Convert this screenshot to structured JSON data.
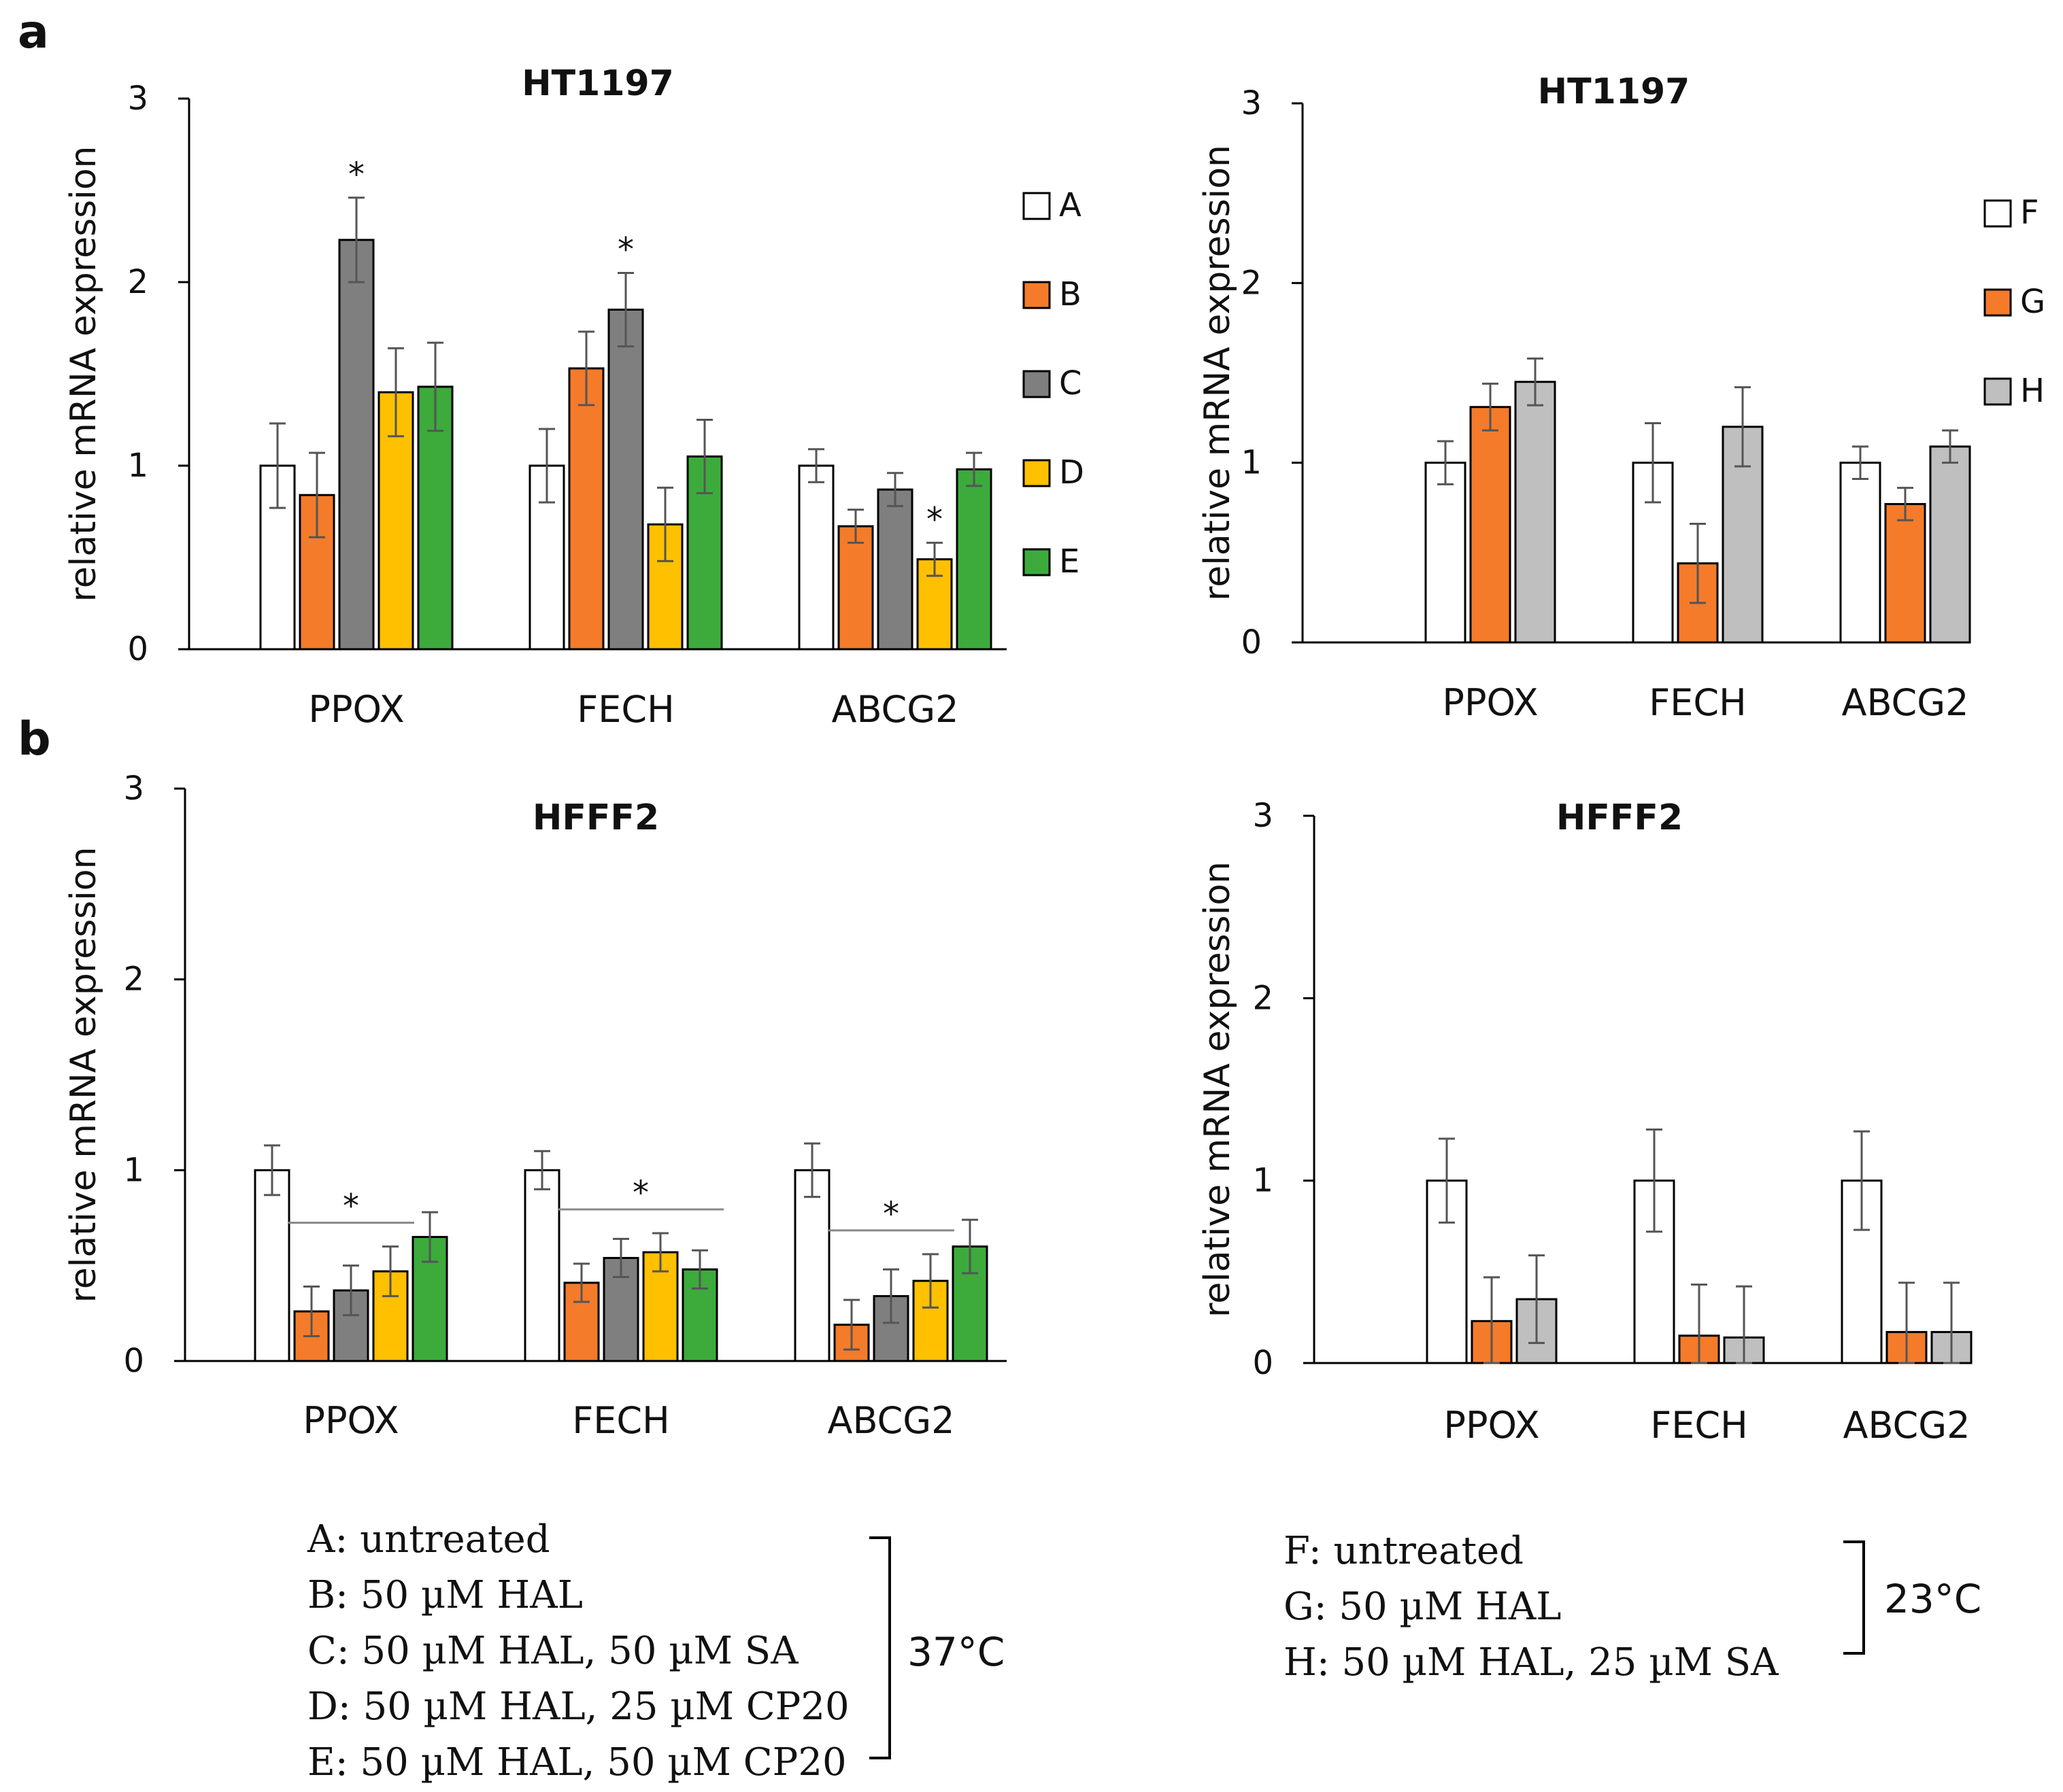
{
  "panel_labels": {
    "a": "a",
    "b": "b"
  },
  "legend_left": {
    "entries": [
      {
        "key": "A",
        "color": "#ffffff"
      },
      {
        "key": "B",
        "color": "#f47b2a"
      },
      {
        "key": "C",
        "color": "#7f7f7f"
      },
      {
        "key": "D",
        "color": "#ffc000"
      },
      {
        "key": "E",
        "color": "#3cab3c"
      }
    ]
  },
  "legend_right": {
    "entries": [
      {
        "key": "F",
        "color": "#ffffff"
      },
      {
        "key": "G",
        "color": "#f47b2a"
      },
      {
        "key": "H",
        "color": "#bfbfbf"
      }
    ]
  },
  "footnote_left": {
    "lines": [
      "A: untreated",
      "B: 50 µM HAL",
      "C: 50 µM HAL, 50 µM SA",
      "D: 50 µM HAL, 25 µM CP20",
      "E: 50 µM HAL, 50 µM CP20"
    ],
    "temperature": "37°C"
  },
  "footnote_right": {
    "lines": [
      "F: untreated",
      "G: 50 µM HAL",
      "H: 50 µM HAL, 25 µM SA"
    ],
    "temperature": "23°C"
  },
  "chart_data": [
    {
      "id": "chart-a-left",
      "type": "bar",
      "title": "HT1197",
      "xlabel": "",
      "ylabel": "relative mRNA expression",
      "ylim": [
        0,
        3
      ],
      "yticks": [
        0,
        1,
        2,
        3
      ],
      "categories": [
        "PPOX",
        "FECH",
        "ABCG2"
      ],
      "series": [
        {
          "name": "A",
          "color": "#ffffff",
          "values": [
            1.0,
            1.0,
            1.0
          ],
          "errors": [
            0.23,
            0.2,
            0.09
          ]
        },
        {
          "name": "B",
          "color": "#f47b2a",
          "values": [
            0.84,
            1.53,
            0.67
          ],
          "errors": [
            0.23,
            0.2,
            0.09
          ]
        },
        {
          "name": "C",
          "color": "#7f7f7f",
          "values": [
            2.23,
            1.85,
            0.87
          ],
          "errors": [
            0.23,
            0.2,
            0.09
          ]
        },
        {
          "name": "D",
          "color": "#ffc000",
          "values": [
            1.4,
            0.68,
            0.49
          ],
          "errors": [
            0.24,
            0.2,
            0.09
          ]
        },
        {
          "name": "E",
          "color": "#3cab3c",
          "values": [
            1.43,
            1.05,
            0.98
          ],
          "errors": [
            0.24,
            0.2,
            0.09
          ]
        }
      ],
      "annotations": [
        {
          "text": "*",
          "category": 0,
          "series": 2
        },
        {
          "text": "*",
          "category": 1,
          "series": 2
        },
        {
          "text": "*",
          "category": 2,
          "series": 3
        }
      ]
    },
    {
      "id": "chart-a-right",
      "type": "bar",
      "title": "HT1197",
      "xlabel": "",
      "ylabel": "relative mRNA expression",
      "ylim": [
        0,
        3
      ],
      "yticks": [
        0,
        1,
        2,
        3
      ],
      "categories": [
        "PPOX",
        "FECH",
        "ABCG2"
      ],
      "series": [
        {
          "name": "F",
          "color": "#ffffff",
          "values": [
            1.0,
            1.0,
            1.0
          ],
          "errors": [
            0.12,
            0.22,
            0.09
          ]
        },
        {
          "name": "G",
          "color": "#f47b2a",
          "values": [
            1.31,
            0.44,
            0.77
          ],
          "errors": [
            0.13,
            0.22,
            0.09
          ]
        },
        {
          "name": "H",
          "color": "#bfbfbf",
          "values": [
            1.45,
            1.2,
            1.09
          ],
          "errors": [
            0.13,
            0.22,
            0.09
          ]
        }
      ],
      "annotations": []
    },
    {
      "id": "chart-b-left",
      "type": "bar",
      "title": "HFFF2",
      "xlabel": "",
      "ylabel": "relative mRNA expression",
      "ylim": [
        0,
        3
      ],
      "yticks": [
        0,
        1,
        2,
        3
      ],
      "categories": [
        "PPOX",
        "FECH",
        "ABCG2"
      ],
      "series": [
        {
          "name": "A",
          "color": "#ffffff",
          "values": [
            1.0,
            1.0,
            1.0
          ],
          "errors": [
            0.13,
            0.1,
            0.14
          ]
        },
        {
          "name": "B",
          "color": "#f47b2a",
          "values": [
            0.26,
            0.41,
            0.19
          ],
          "errors": [
            0.13,
            0.1,
            0.13
          ]
        },
        {
          "name": "C",
          "color": "#7f7f7f",
          "values": [
            0.37,
            0.54,
            0.34
          ],
          "errors": [
            0.13,
            0.1,
            0.14
          ]
        },
        {
          "name": "D",
          "color": "#ffc000",
          "values": [
            0.47,
            0.57,
            0.42
          ],
          "errors": [
            0.13,
            0.1,
            0.14
          ]
        },
        {
          "name": "E",
          "color": "#3cab3c",
          "values": [
            0.65,
            0.48,
            0.6
          ],
          "errors": [
            0.13,
            0.1,
            0.14
          ]
        }
      ],
      "annotations": [
        {
          "text": "*",
          "category": 0,
          "span": [
            1,
            3
          ]
        },
        {
          "text": "*",
          "category": 1,
          "span": [
            1,
            4
          ]
        },
        {
          "text": "*",
          "category": 2,
          "span": [
            1,
            3
          ]
        }
      ]
    },
    {
      "id": "chart-b-right",
      "type": "bar",
      "title": "HFFF2",
      "xlabel": "",
      "ylabel": "relative mRNA expression",
      "ylim": [
        0,
        3
      ],
      "yticks": [
        0,
        1,
        2,
        3
      ],
      "categories": [
        "PPOX",
        "FECH",
        "ABCG2"
      ],
      "series": [
        {
          "name": "F",
          "color": "#ffffff",
          "values": [
            1.0,
            1.0,
            1.0
          ],
          "errors": [
            0.23,
            0.28,
            0.27
          ]
        },
        {
          "name": "G",
          "color": "#f47b2a",
          "values": [
            0.23,
            0.15,
            0.17
          ],
          "errors": [
            0.24,
            0.28,
            0.27
          ]
        },
        {
          "name": "H",
          "color": "#bfbfbf",
          "values": [
            0.35,
            0.14,
            0.17
          ],
          "errors": [
            0.24,
            0.28,
            0.27
          ]
        }
      ],
      "annotations": []
    }
  ]
}
